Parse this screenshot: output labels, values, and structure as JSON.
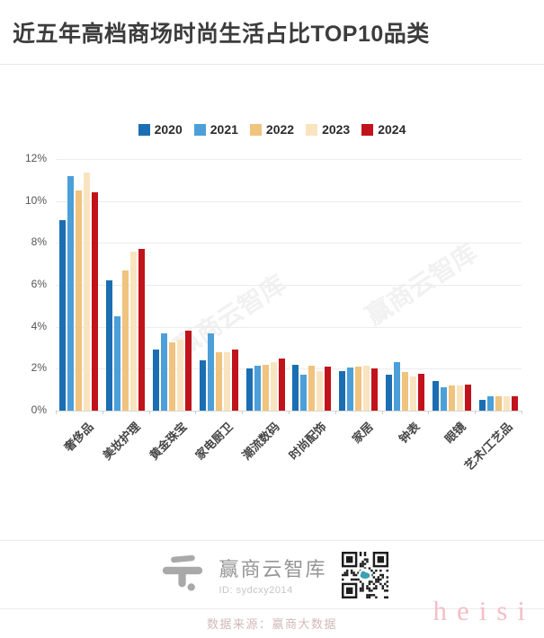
{
  "title": "近五年高档商场时尚生活占比TOP10品类",
  "chart_data": {
    "type": "bar",
    "title": "近五年高档商场时尚生活占比TOP10品类",
    "categories": [
      "奢侈品",
      "美妆护理",
      "黄金珠宝",
      "家电厨卫",
      "潮流数码",
      "时尚配饰",
      "家居",
      "钟表",
      "眼镜",
      "艺术/工艺品"
    ],
    "series": [
      {
        "name": "2020",
        "color": "#1b6eb2",
        "values": [
          9.1,
          6.2,
          2.9,
          2.4,
          2.0,
          2.2,
          1.9,
          1.7,
          1.4,
          0.5
        ]
      },
      {
        "name": "2021",
        "color": "#4c9fd8",
        "values": [
          11.2,
          4.5,
          3.7,
          3.7,
          2.15,
          1.7,
          2.05,
          2.3,
          1.1,
          0.7
        ]
      },
      {
        "name": "2022",
        "color": "#f0c37e",
        "values": [
          10.5,
          6.7,
          3.25,
          2.8,
          2.2,
          2.15,
          2.1,
          1.85,
          1.2,
          0.7
        ]
      },
      {
        "name": "2023",
        "color": "#f9e4c0",
        "values": [
          11.35,
          7.6,
          3.4,
          2.8,
          2.3,
          1.9,
          2.15,
          1.65,
          1.2,
          0.7
        ]
      },
      {
        "name": "2024",
        "color": "#c1131b",
        "values": [
          10.4,
          7.7,
          3.8,
          2.9,
          2.5,
          2.1,
          2.0,
          1.75,
          1.25,
          0.7
        ]
      }
    ],
    "xlabel": "",
    "ylabel": "",
    "ylim": [
      0,
      12
    ],
    "ytick_labels": [
      "0%",
      "2%",
      "4%",
      "6%",
      "8%",
      "10%",
      "12%"
    ],
    "grid": true,
    "legend_position": "top"
  },
  "watermarks": {
    "text1": "赢商云智库",
    "text2": "赢商云智库"
  },
  "footer": {
    "brand_name": "赢商云智库",
    "brand_id": "ID: sydcxy2014",
    "source": "数据来源：赢商大数据",
    "corner_watermark": "heisi"
  }
}
